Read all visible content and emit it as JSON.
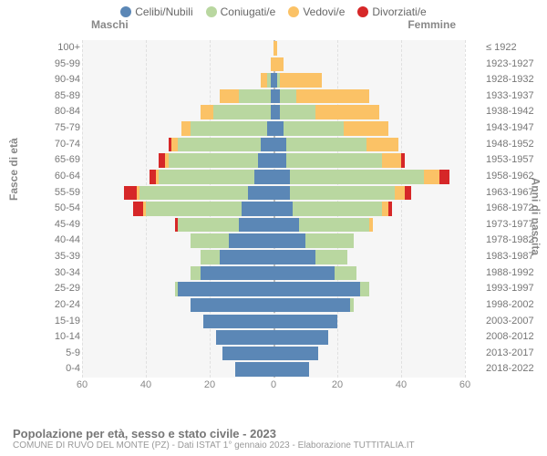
{
  "legend": [
    {
      "label": "Celibi/Nubili",
      "color": "#5b87b6"
    },
    {
      "label": "Coniugati/e",
      "color": "#b9d7a0"
    },
    {
      "label": "Vedovi/e",
      "color": "#fbc266"
    },
    {
      "label": "Divorziati/e",
      "color": "#d62728"
    }
  ],
  "header": {
    "male": "Maschi",
    "female": "Femmine"
  },
  "axis": {
    "left_label": "Fasce di età",
    "right_label": "Anni di nascita",
    "xmax": 60,
    "xticks": [
      60,
      40,
      20,
      0,
      20,
      40,
      60
    ]
  },
  "colors": {
    "celibi": "#5b87b6",
    "coniugati": "#b9d7a0",
    "vedovi": "#fbc266",
    "divorziati": "#d62728",
    "plot_bg": "#f6f6f6",
    "grid": "#e0e0e0",
    "center": "#bbbbbb"
  },
  "rows": [
    {
      "age": "100+",
      "yr": "≤ 1922",
      "m": {
        "cel": 0,
        "con": 0,
        "ved": 0,
        "div": 0
      },
      "f": {
        "cel": 0,
        "con": 0,
        "ved": 1,
        "div": 0
      }
    },
    {
      "age": "95-99",
      "yr": "1923-1927",
      "m": {
        "cel": 0,
        "con": 0,
        "ved": 1,
        "div": 0
      },
      "f": {
        "cel": 0,
        "con": 0,
        "ved": 3,
        "div": 0
      }
    },
    {
      "age": "90-94",
      "yr": "1928-1932",
      "m": {
        "cel": 1,
        "con": 1,
        "ved": 2,
        "div": 0
      },
      "f": {
        "cel": 1,
        "con": 1,
        "ved": 13,
        "div": 0
      }
    },
    {
      "age": "85-89",
      "yr": "1933-1937",
      "m": {
        "cel": 1,
        "con": 10,
        "ved": 6,
        "div": 0
      },
      "f": {
        "cel": 2,
        "con": 5,
        "ved": 23,
        "div": 0
      }
    },
    {
      "age": "80-84",
      "yr": "1938-1942",
      "m": {
        "cel": 1,
        "con": 18,
        "ved": 4,
        "div": 0
      },
      "f": {
        "cel": 2,
        "con": 11,
        "ved": 20,
        "div": 0
      }
    },
    {
      "age": "75-79",
      "yr": "1943-1947",
      "m": {
        "cel": 2,
        "con": 24,
        "ved": 3,
        "div": 0
      },
      "f": {
        "cel": 3,
        "con": 19,
        "ved": 14,
        "div": 0
      }
    },
    {
      "age": "70-74",
      "yr": "1948-1952",
      "m": {
        "cel": 4,
        "con": 26,
        "ved": 2,
        "div": 1
      },
      "f": {
        "cel": 4,
        "con": 25,
        "ved": 10,
        "div": 0
      }
    },
    {
      "age": "65-69",
      "yr": "1953-1957",
      "m": {
        "cel": 5,
        "con": 28,
        "ved": 1,
        "div": 2
      },
      "f": {
        "cel": 4,
        "con": 30,
        "ved": 6,
        "div": 1
      }
    },
    {
      "age": "60-64",
      "yr": "1958-1962",
      "m": {
        "cel": 6,
        "con": 30,
        "ved": 1,
        "div": 2
      },
      "f": {
        "cel": 5,
        "con": 42,
        "ved": 5,
        "div": 3
      }
    },
    {
      "age": "55-59",
      "yr": "1963-1967",
      "m": {
        "cel": 8,
        "con": 34,
        "ved": 1,
        "div": 4
      },
      "f": {
        "cel": 5,
        "con": 33,
        "ved": 3,
        "div": 2
      }
    },
    {
      "age": "50-54",
      "yr": "1968-1972",
      "m": {
        "cel": 10,
        "con": 30,
        "ved": 1,
        "div": 3
      },
      "f": {
        "cel": 6,
        "con": 28,
        "ved": 2,
        "div": 1
      }
    },
    {
      "age": "45-49",
      "yr": "1973-1977",
      "m": {
        "cel": 11,
        "con": 19,
        "ved": 0,
        "div": 1
      },
      "f": {
        "cel": 8,
        "con": 22,
        "ved": 1,
        "div": 0
      }
    },
    {
      "age": "40-44",
      "yr": "1978-1982",
      "m": {
        "cel": 14,
        "con": 12,
        "ved": 0,
        "div": 0
      },
      "f": {
        "cel": 10,
        "con": 15,
        "ved": 0,
        "div": 0
      }
    },
    {
      "age": "35-39",
      "yr": "1983-1987",
      "m": {
        "cel": 17,
        "con": 6,
        "ved": 0,
        "div": 0
      },
      "f": {
        "cel": 13,
        "con": 10,
        "ved": 0,
        "div": 0
      }
    },
    {
      "age": "30-34",
      "yr": "1988-1992",
      "m": {
        "cel": 23,
        "con": 3,
        "ved": 0,
        "div": 0
      },
      "f": {
        "cel": 19,
        "con": 7,
        "ved": 0,
        "div": 0
      }
    },
    {
      "age": "25-29",
      "yr": "1993-1997",
      "m": {
        "cel": 30,
        "con": 1,
        "ved": 0,
        "div": 0
      },
      "f": {
        "cel": 27,
        "con": 3,
        "ved": 0,
        "div": 0
      }
    },
    {
      "age": "20-24",
      "yr": "1998-2002",
      "m": {
        "cel": 26,
        "con": 0,
        "ved": 0,
        "div": 0
      },
      "f": {
        "cel": 24,
        "con": 1,
        "ved": 0,
        "div": 0
      }
    },
    {
      "age": "15-19",
      "yr": "2003-2007",
      "m": {
        "cel": 22,
        "con": 0,
        "ved": 0,
        "div": 0
      },
      "f": {
        "cel": 20,
        "con": 0,
        "ved": 0,
        "div": 0
      }
    },
    {
      "age": "10-14",
      "yr": "2008-2012",
      "m": {
        "cel": 18,
        "con": 0,
        "ved": 0,
        "div": 0
      },
      "f": {
        "cel": 17,
        "con": 0,
        "ved": 0,
        "div": 0
      }
    },
    {
      "age": "5-9",
      "yr": "2013-2017",
      "m": {
        "cel": 16,
        "con": 0,
        "ved": 0,
        "div": 0
      },
      "f": {
        "cel": 14,
        "con": 0,
        "ved": 0,
        "div": 0
      }
    },
    {
      "age": "0-4",
      "yr": "2018-2022",
      "m": {
        "cel": 12,
        "con": 0,
        "ved": 0,
        "div": 0
      },
      "f": {
        "cel": 11,
        "con": 0,
        "ved": 0,
        "div": 0
      }
    }
  ],
  "footer": {
    "title": "Popolazione per età, sesso e stato civile - 2023",
    "sub": "COMUNE DI RUVO DEL MONTE (PZ) - Dati ISTAT 1° gennaio 2023 - Elaborazione TUTTITALIA.IT"
  }
}
